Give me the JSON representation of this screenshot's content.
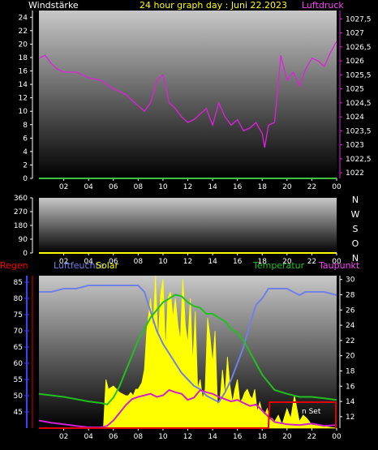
{
  "header": {
    "left_label": "Windstärke",
    "title": "24 hour graph day : Juni 22.2023",
    "right_label": "Luftdruck"
  },
  "panel3_labels": {
    "regen": "Regen",
    "luftfeuchte": "Luftfeuchte",
    "solar": "Solar",
    "temperatur": "Temperatur",
    "taupunkt": "Taupunkt",
    "annotation": "n Set"
  },
  "colors": {
    "pressure": "#e020e0",
    "wind": "#40c040",
    "humidity": "#7080e8",
    "temperature": "#20c020",
    "dewpoint": "#d020d0",
    "solar": "#ffff00",
    "rain": "#e00000",
    "left_axis_regen": "#4040ff",
    "title": "#ffff00",
    "magenta_label": "#ff40ff"
  },
  "chart_data": [
    {
      "type": "line",
      "name": "wind_pressure",
      "x_ticks": [
        "02",
        "04",
        "06",
        "08",
        "10",
        "12",
        "14",
        "16",
        "18",
        "20",
        "22",
        "00"
      ],
      "y_left_ticks": [
        "0",
        "2",
        "4",
        "6",
        "8",
        "10",
        "12",
        "14",
        "16",
        "18",
        "20",
        "22",
        "24"
      ],
      "y_left_range": [
        0,
        25
      ],
      "y_right_ticks": [
        "1022",
        "1022,5",
        "1023",
        "1023,5",
        "1024",
        "1024,5",
        "1025",
        "1025,5",
        "1026",
        "1026,5",
        "1027",
        "1027,5"
      ],
      "y_right_range": [
        1021.8,
        1027.8
      ],
      "series": [
        {
          "name": "Luftdruck",
          "axis": "right",
          "x": [
            0,
            0.5,
            1,
            1.5,
            2,
            3,
            4,
            5,
            6,
            7,
            8,
            8.5,
            9,
            9.5,
            10,
            10.5,
            11,
            11.5,
            12,
            12.5,
            13,
            13.5,
            14,
            14.5,
            15,
            15.5,
            16,
            16.5,
            17,
            17.5,
            18,
            18.2,
            18.5,
            19,
            19.5,
            20,
            20.5,
            21,
            21.5,
            22,
            22.5,
            23,
            23.5,
            24
          ],
          "y": [
            1026.1,
            1026.2,
            1025.9,
            1025.7,
            1025.6,
            1025.6,
            1025.4,
            1025.3,
            1025.0,
            1024.8,
            1024.4,
            1024.2,
            1024.5,
            1025.3,
            1025.5,
            1024.5,
            1024.3,
            1024.0,
            1023.8,
            1023.9,
            1024.1,
            1024.3,
            1023.7,
            1024.5,
            1024.0,
            1023.7,
            1023.9,
            1023.5,
            1023.6,
            1023.8,
            1023.4,
            1022.9,
            1023.7,
            1023.8,
            1026.2,
            1025.3,
            1025.6,
            1025.1,
            1025.7,
            1026.1,
            1026.0,
            1025.8,
            1026.3,
            1026.7
          ]
        },
        {
          "name": "Windstärke",
          "axis": "left",
          "x": [
            0,
            24
          ],
          "y": [
            0,
            0
          ]
        }
      ]
    },
    {
      "type": "line",
      "name": "wind_direction",
      "x_ticks": [
        "02",
        "04",
        "06",
        "08",
        "10",
        "12",
        "14",
        "16",
        "18",
        "20",
        "22",
        "00"
      ],
      "y_ticks": [
        "0",
        "90",
        "180",
        "270",
        "360"
      ],
      "y_range": [
        0,
        360
      ],
      "compass": [
        "N",
        "W",
        "S",
        "O",
        "N"
      ],
      "series": [
        {
          "name": "direction",
          "x": [
            0,
            24
          ],
          "y": [
            0,
            0
          ]
        }
      ]
    },
    {
      "type": "line",
      "name": "humidity_temp_solar",
      "x_ticks": [
        "02",
        "04",
        "06",
        "08",
        "10",
        "12",
        "14",
        "16",
        "18",
        "20",
        "22",
        "00"
      ],
      "y_left_ticks": [
        "45",
        "50",
        "55",
        "60",
        "65",
        "70",
        "75",
        "80",
        "85"
      ],
      "y_left_range": [
        40,
        87
      ],
      "y_right_ticks": [
        "12",
        "14",
        "16",
        "18",
        "20",
        "22",
        "24",
        "26",
        "28",
        "30"
      ],
      "y_right_range": [
        10.5,
        30.5
      ],
      "series": [
        {
          "name": "Luftfeuchte",
          "axis": "left",
          "x": [
            0,
            1,
            2,
            3,
            4,
            5,
            6,
            7,
            7.5,
            8,
            8.5,
            9,
            9.5,
            10,
            10.5,
            11,
            11.5,
            12,
            12.5,
            13,
            13.5,
            14,
            14.5,
            15,
            15.5,
            16,
            16.5,
            17,
            17.5,
            18,
            18.5,
            19,
            19.5,
            20,
            20.5,
            21,
            21.5,
            22,
            23,
            24
          ],
          "y": [
            82,
            82,
            83,
            83,
            84,
            84,
            84,
            84,
            84,
            84,
            82,
            76,
            70,
            66,
            63,
            60,
            57,
            55,
            53,
            52,
            50,
            49,
            48,
            51,
            55,
            60,
            65,
            72,
            78,
            80,
            83,
            83,
            83,
            83,
            82,
            81,
            82,
            82,
            82,
            81
          ]
        },
        {
          "name": "Temperatur",
          "axis": "right",
          "x": [
            0,
            1,
            2,
            3,
            4,
            5,
            5.5,
            6,
            6.5,
            7,
            7.5,
            8,
            8.5,
            9,
            9.5,
            10,
            10.5,
            11,
            11.5,
            12,
            12.5,
            13,
            13.5,
            14,
            14.5,
            15,
            15.5,
            16,
            16.5,
            17,
            17.5,
            18,
            18.5,
            19,
            20,
            21,
            22,
            23,
            24
          ],
          "y": [
            15,
            14.8,
            14.6,
            14.3,
            14,
            13.8,
            13.6,
            14.5,
            16,
            18,
            20,
            22,
            23.5,
            25,
            26,
            27,
            27.5,
            28,
            27.8,
            27,
            26.5,
            26.3,
            25.5,
            25.5,
            25,
            24.5,
            23.5,
            23,
            22,
            20.5,
            19,
            17.5,
            16.5,
            15.5,
            15,
            14.6,
            14.6,
            14.4,
            14.2
          ]
        },
        {
          "name": "Taupunkt",
          "axis": "right",
          "x": [
            0,
            1,
            2,
            3,
            4,
            5,
            5.5,
            6,
            6.5,
            7,
            7.5,
            8,
            8.5,
            9,
            9.5,
            10,
            10.5,
            11,
            11.5,
            12,
            12.5,
            13,
            13.5,
            14,
            14.5,
            15,
            15.5,
            16,
            16.5,
            17,
            17.5,
            18,
            18.5,
            19,
            20,
            21,
            22,
            23,
            24
          ],
          "y": [
            11.5,
            11.2,
            11,
            10.8,
            10.6,
            10.6,
            10.8,
            11.5,
            12.5,
            13.5,
            14.3,
            14.6,
            14.8,
            15,
            14.6,
            14.8,
            15.5,
            15.2,
            15,
            14.2,
            14.5,
            15.5,
            15.2,
            15,
            14.6,
            14.3,
            14,
            14.2,
            13.8,
            13.4,
            13.6,
            12.8,
            12.0,
            11.3,
            11.0,
            10.9,
            11.1,
            10.8,
            10.9
          ]
        },
        {
          "name": "Regen",
          "axis": "left",
          "x": [
            0,
            18.5,
            18.6,
            24
          ],
          "y": [
            40,
            40,
            48,
            48
          ]
        },
        {
          "name": "Solar",
          "axis": "left",
          "x": [
            0,
            5.2,
            5.4,
            5.6,
            6,
            6.5,
            7,
            7.2,
            7.4,
            7.6,
            7.8,
            8,
            8.3,
            8.5,
            8.7,
            9,
            9.2,
            9.4,
            9.6,
            9.8,
            10,
            10.2,
            10.4,
            10.6,
            10.8,
            11,
            11.2,
            11.4,
            11.6,
            11.8,
            12,
            12.2,
            12.4,
            12.6,
            12.8,
            13,
            13.2,
            13.4,
            13.6,
            13.8,
            14,
            14.2,
            14.4,
            14.6,
            14.8,
            15,
            15.2,
            15.4,
            15.6,
            15.8,
            16,
            16.2,
            16.4,
            16.6,
            16.8,
            17,
            17.2,
            17.4,
            17.6,
            17.8,
            18,
            18.2,
            18.4,
            18.6,
            18.8,
            19,
            19.3,
            19.6,
            20,
            20.3,
            20.6,
            21,
            21.3,
            21.6,
            22,
            24
          ],
          "y": [
            40,
            40,
            55,
            52,
            53,
            51,
            50,
            50,
            51,
            50,
            52,
            52,
            54,
            58,
            70,
            80,
            70,
            87,
            66,
            81,
            86,
            64,
            80,
            82,
            74,
            80,
            72,
            67,
            86,
            72,
            66,
            80,
            60,
            76,
            52,
            55,
            49,
            52,
            74,
            68,
            60,
            70,
            47,
            49,
            58,
            50,
            62,
            53,
            48,
            52,
            55,
            48,
            49,
            51,
            52,
            50,
            49,
            52,
            45,
            48,
            45,
            44,
            46,
            43,
            43,
            42,
            44,
            41,
            46,
            43,
            50,
            42,
            44,
            43,
            41,
            40
          ]
        }
      ]
    }
  ]
}
